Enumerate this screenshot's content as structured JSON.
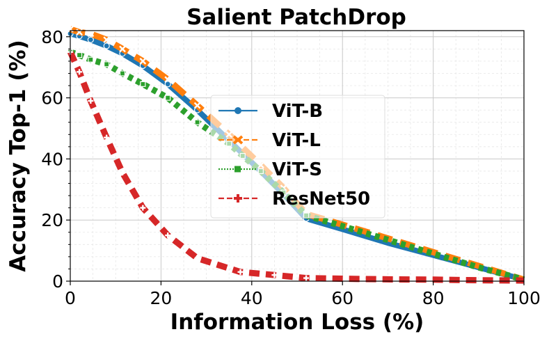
{
  "chart_data": {
    "type": "line",
    "title": "Salient PatchDrop",
    "xlabel": "Information Loss (%)",
    "ylabel": "Accuracy Top-1 (%)",
    "xlim": [
      0,
      100
    ],
    "ylim": [
      0,
      82
    ],
    "x_ticks": [
      0,
      20,
      40,
      60,
      80,
      100
    ],
    "y_ticks": [
      0,
      20,
      40,
      60,
      80
    ],
    "x_tick_labels": [
      "0",
      "20",
      "40",
      "60",
      "80",
      "100"
    ],
    "y_tick_labels": [
      "0",
      "20",
      "40",
      "60",
      "80"
    ],
    "grid": true,
    "legend_position": "center",
    "series": [
      {
        "name": "ViT-B",
        "color": "#1f77b4",
        "linestyle": "solid",
        "marker": "circle",
        "points": [
          [
            0,
            81
          ],
          [
            2,
            80.2
          ],
          [
            4.5,
            79
          ],
          [
            8,
            77
          ],
          [
            11.5,
            74.5
          ],
          [
            16,
            70.5
          ],
          [
            21.5,
            64.5
          ],
          [
            28,
            56
          ],
          [
            35,
            46
          ],
          [
            42,
            36
          ],
          [
            47,
            28.5
          ],
          [
            52,
            20.5
          ],
          [
            60,
            17
          ],
          [
            70,
            12.5
          ],
          [
            80,
            8.5
          ],
          [
            90,
            4.5
          ],
          [
            100,
            0.5
          ]
        ]
      },
      {
        "name": "ViT-L",
        "color": "#ff7f0e",
        "linestyle": "dashed",
        "marker": "x",
        "points": [
          [
            0,
            82.5
          ],
          [
            2,
            81.5
          ],
          [
            4.5,
            81
          ],
          [
            8,
            79
          ],
          [
            11.5,
            76
          ],
          [
            16,
            72
          ],
          [
            21.5,
            66
          ],
          [
            28,
            57.5
          ],
          [
            35,
            48
          ],
          [
            42,
            38
          ],
          [
            47,
            30.5
          ],
          [
            52,
            22
          ],
          [
            60,
            18.5
          ],
          [
            70,
            14
          ],
          [
            80,
            9.5
          ],
          [
            90,
            5
          ],
          [
            100,
            0.5
          ]
        ]
      },
      {
        "name": "ViT-S",
        "color": "#2ca02c",
        "linestyle": "dotted",
        "marker": "square",
        "points": [
          [
            0,
            75
          ],
          [
            2,
            74
          ],
          [
            4.5,
            72.5
          ],
          [
            8,
            71
          ],
          [
            11.5,
            68
          ],
          [
            16,
            64.5
          ],
          [
            21.5,
            60
          ],
          [
            28,
            52
          ],
          [
            35,
            45
          ],
          [
            38,
            41
          ],
          [
            42,
            36
          ],
          [
            47,
            29
          ],
          [
            52,
            21.5
          ],
          [
            60,
            18
          ],
          [
            70,
            13.5
          ],
          [
            80,
            9
          ],
          [
            90,
            4.5
          ],
          [
            100,
            0.5
          ]
        ]
      },
      {
        "name": "ResNet50",
        "color": "#d62728",
        "linestyle": "dashed",
        "marker": "plus",
        "points": [
          [
            0,
            75
          ],
          [
            2,
            68.5
          ],
          [
            4.5,
            59
          ],
          [
            8,
            47
          ],
          [
            11.5,
            35.5
          ],
          [
            16,
            24
          ],
          [
            21.5,
            15
          ],
          [
            28,
            7.5
          ],
          [
            37.5,
            3
          ],
          [
            45,
            2
          ],
          [
            52,
            1
          ],
          [
            60,
            0.8
          ],
          [
            70,
            0.6
          ],
          [
            80,
            0.5
          ],
          [
            90,
            0.3
          ],
          [
            100,
            0.2
          ]
        ]
      }
    ]
  }
}
